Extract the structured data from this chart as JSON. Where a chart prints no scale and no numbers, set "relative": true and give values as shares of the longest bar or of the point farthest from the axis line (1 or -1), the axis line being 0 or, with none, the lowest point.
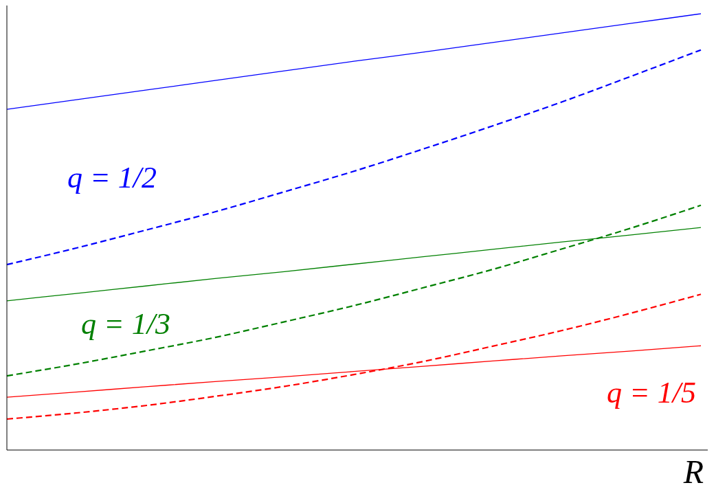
{
  "chart_data": {
    "type": "line",
    "relative": true,
    "xlabel": "R",
    "categories": [
      null,
      null,
      null,
      null,
      null,
      null,
      null,
      null,
      null,
      null,
      null
    ],
    "series": [
      {
        "color": "#0000ff",
        "line_style": "solid",
        "values": [
          0.781,
          0.803,
          0.825,
          0.847,
          0.869,
          0.891,
          0.912,
          0.934,
          0.956,
          0.978,
          1.0
        ]
      },
      {
        "color": "#0000ff",
        "line_style": "dashed",
        "values": [
          0.425,
          0.463,
          0.504,
          0.546,
          0.592,
          0.639,
          0.69,
          0.743,
          0.798,
          0.857,
          0.917
        ]
      },
      {
        "color": "#008000",
        "line_style": "solid",
        "values": [
          0.342,
          0.359,
          0.376,
          0.393,
          0.409,
          0.426,
          0.443,
          0.46,
          0.477,
          0.493,
          0.51
        ]
      },
      {
        "color": "#008000",
        "line_style": "dashed",
        "values": [
          0.17,
          0.197,
          0.227,
          0.258,
          0.294,
          0.331,
          0.372,
          0.414,
          0.461,
          0.509,
          0.561
        ]
      },
      {
        "color": "#ff0000",
        "line_style": "solid",
        "values": [
          0.121,
          0.133,
          0.145,
          0.157,
          0.168,
          0.18,
          0.192,
          0.204,
          0.216,
          0.227,
          0.239
        ]
      },
      {
        "color": "#ff0000",
        "line_style": "dashed",
        "values": [
          0.071,
          0.085,
          0.102,
          0.123,
          0.146,
          0.173,
          0.203,
          0.238,
          0.274,
          0.314,
          0.357
        ]
      }
    ],
    "annotations": [
      "q = 1/2",
      "q = 1/3",
      "q = 1/5"
    ],
    "grid": false
  }
}
